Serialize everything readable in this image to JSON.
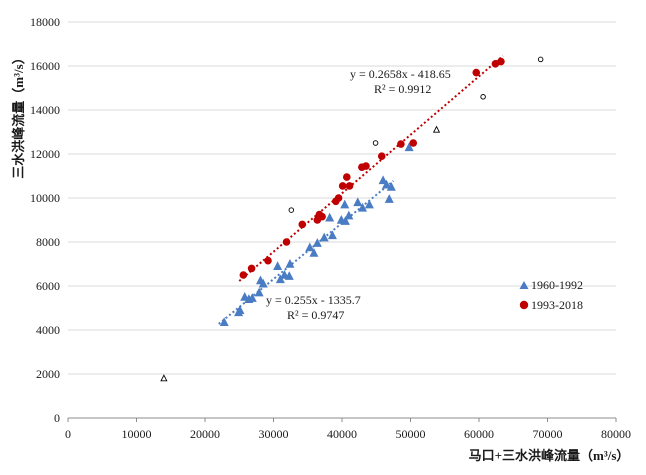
{
  "colors": {
    "series_1960_1992": "#4a7cc4",
    "series_1993_2018": "#c00000",
    "outlier": "#000000",
    "grid": "#d9d9d9",
    "axis": "#8c8c8c"
  },
  "chart_data": {
    "type": "scatter",
    "xlabel": "马口+三水洪峰流量（m³/s）",
    "ylabel": "三水洪峰流量（m³/s）",
    "xlim": [
      0,
      80000
    ],
    "ylim": [
      0,
      18000
    ],
    "x_ticks": [
      "0",
      "10000",
      "20000",
      "30000",
      "40000",
      "50000",
      "60000",
      "70000",
      "80000"
    ],
    "y_ticks": [
      "0",
      "2000",
      "4000",
      "6000",
      "8000",
      "10000",
      "12000",
      "14000",
      "16000",
      "18000"
    ],
    "grid": "horizontal",
    "legend_placement": "right",
    "series": [
      {
        "name": "1960-1992",
        "marker": "triangle",
        "trendline": {
          "equation": "y = 0.255x - 1335.7",
          "r2": "R² = 0.9747",
          "slope": 0.255,
          "intercept": -1335.7,
          "x_range": [
            22000,
            47500
          ]
        },
        "points": [
          [
            22800,
            4350
          ],
          [
            24900,
            4800
          ],
          [
            25100,
            4900
          ],
          [
            25800,
            5500
          ],
          [
            26400,
            5400
          ],
          [
            26900,
            5450
          ],
          [
            27900,
            5700
          ],
          [
            28100,
            6250
          ],
          [
            28500,
            6100
          ],
          [
            30600,
            6900
          ],
          [
            31000,
            6300
          ],
          [
            31600,
            6500
          ],
          [
            32300,
            6450
          ],
          [
            32400,
            7000
          ],
          [
            35300,
            7750
          ],
          [
            35900,
            7500
          ],
          [
            36400,
            7950
          ],
          [
            37400,
            8200
          ],
          [
            38200,
            9100
          ],
          [
            38600,
            8300
          ],
          [
            39900,
            9000
          ],
          [
            40400,
            9700
          ],
          [
            40500,
            8950
          ],
          [
            41000,
            9200
          ],
          [
            42300,
            9800
          ],
          [
            43000,
            9550
          ],
          [
            44000,
            9700
          ],
          [
            46000,
            10800
          ],
          [
            46500,
            10600
          ],
          [
            46900,
            9950
          ],
          [
            47200,
            10500
          ],
          [
            49800,
            12300
          ]
        ]
      },
      {
        "name": "1993-2018",
        "marker": "circle",
        "trendline": {
          "equation": "y = 0.2658x - 418.65",
          "r2": "R² = 0.9912",
          "slope": 0.2658,
          "intercept": -418.65,
          "x_range": [
            25000,
            63500
          ]
        },
        "points": [
          [
            25600,
            6500
          ],
          [
            26800,
            6800
          ],
          [
            29200,
            7150
          ],
          [
            31900,
            8000
          ],
          [
            34200,
            8800
          ],
          [
            36400,
            9000
          ],
          [
            36700,
            9250
          ],
          [
            37100,
            9150
          ],
          [
            39100,
            9850
          ],
          [
            39500,
            10000
          ],
          [
            40100,
            10550
          ],
          [
            40700,
            10950
          ],
          [
            41100,
            10550
          ],
          [
            42900,
            11400
          ],
          [
            43500,
            11450
          ],
          [
            45800,
            11900
          ],
          [
            48600,
            12450
          ],
          [
            50400,
            12500
          ],
          [
            59600,
            15700
          ],
          [
            62400,
            16100
          ],
          [
            63200,
            16200
          ]
        ]
      },
      {
        "name": "",
        "marker": "open-circle",
        "points": [
          [
            32600,
            9450
          ],
          [
            44900,
            12500
          ],
          [
            60600,
            14600
          ],
          [
            69000,
            16300
          ]
        ]
      },
      {
        "name": "",
        "marker": "open-triangle",
        "points": [
          [
            14000,
            1800
          ],
          [
            53800,
            13100
          ]
        ]
      }
    ]
  }
}
